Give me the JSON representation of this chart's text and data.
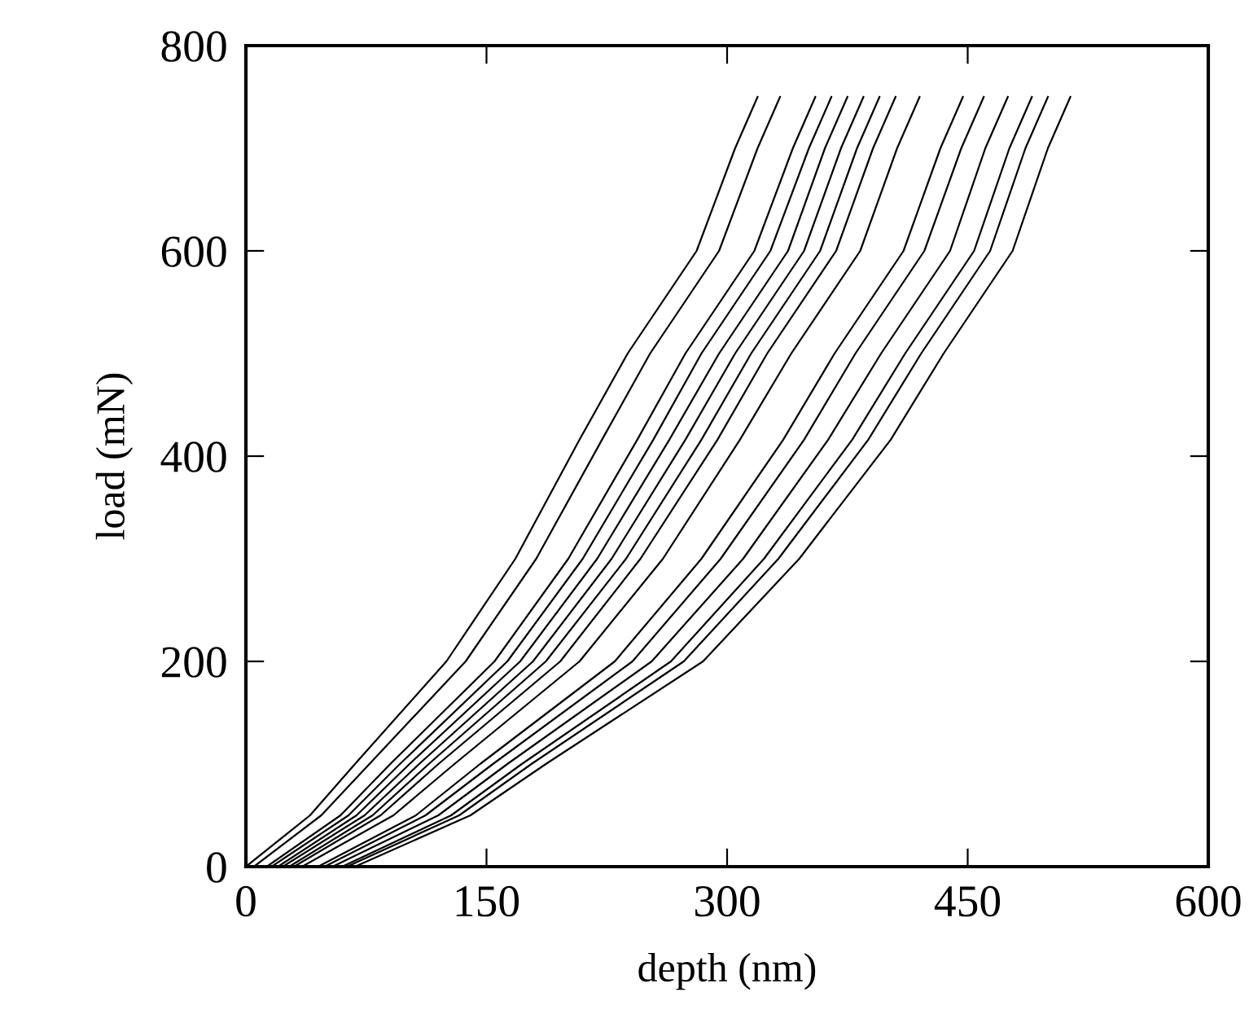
{
  "chart_data": {
    "type": "line",
    "xlabel": "depth (nm)",
    "ylabel": "load (mN)",
    "xlim": [
      0,
      600
    ],
    "xticks": [
      0,
      150,
      300,
      450,
      600
    ],
    "ylim": [
      0,
      800
    ],
    "yticks": [
      0,
      200,
      400,
      600,
      800
    ],
    "grid": false,
    "legend": false,
    "marker": "none",
    "line_style": "solid",
    "series": [
      {
        "color": "#000000",
        "x": [
          0,
          40,
          68,
          125,
          168,
          208,
          238,
          281,
          305,
          319
        ],
        "values": [
          0,
          50,
          100,
          200,
          300,
          416,
          500,
          600,
          700,
          750
        ]
      },
      {
        "color": "#000000",
        "x": [
          5,
          47,
          77,
          137,
          181,
          222,
          252,
          295,
          319,
          333
        ],
        "values": [
          0,
          50,
          100,
          200,
          300,
          416,
          500,
          600,
          700,
          750
        ]
      },
      {
        "color": "#000000",
        "x": [
          13,
          59,
          90,
          155,
          201,
          244,
          274,
          317,
          341,
          355
        ],
        "values": [
          0,
          50,
          100,
          200,
          300,
          416,
          500,
          600,
          700,
          750
        ]
      },
      {
        "color": "#000000",
        "x": [
          16,
          64,
          96,
          163,
          210,
          254,
          284,
          327,
          351,
          365
        ],
        "values": [
          0,
          50,
          100,
          200,
          300,
          416,
          500,
          600,
          700,
          750
        ]
      },
      {
        "color": "#000000",
        "x": [
          20,
          69,
          102,
          171,
          219,
          264,
          295,
          338,
          361,
          375
        ],
        "values": [
          0,
          50,
          100,
          200,
          300,
          416,
          500,
          600,
          700,
          750
        ]
      },
      {
        "color": "#000000",
        "x": [
          23,
          74,
          108,
          179,
          228,
          274,
          305,
          348,
          371,
          385
        ],
        "values": [
          0,
          50,
          100,
          200,
          300,
          416,
          500,
          600,
          700,
          750
        ]
      },
      {
        "color": "#000000",
        "x": [
          27,
          79,
          114,
          187,
          237,
          284,
          315,
          358,
          381,
          395
        ],
        "values": [
          0,
          50,
          100,
          200,
          300,
          416,
          500,
          600,
          700,
          750
        ]
      },
      {
        "color": "#000000",
        "x": [
          30,
          84,
          120,
          196,
          246,
          294,
          325,
          368,
          391,
          405
        ],
        "values": [
          0,
          50,
          100,
          200,
          300,
          416,
          500,
          600,
          700,
          750
        ]
      },
      {
        "color": "#000000",
        "x": [
          35,
          92,
          130,
          208,
          260,
          308,
          340,
          383,
          406,
          420
        ],
        "values": [
          0,
          50,
          100,
          200,
          300,
          416,
          500,
          600,
          700,
          750
        ]
      },
      {
        "color": "#000000",
        "x": [
          45,
          106,
          146,
          230,
          284,
          335,
          367,
          410,
          433,
          447
        ],
        "values": [
          0,
          50,
          100,
          200,
          300,
          416,
          500,
          600,
          700,
          750
        ]
      },
      {
        "color": "#000000",
        "x": [
          49,
          112,
          154,
          241,
          296,
          348,
          380,
          423,
          446,
          460
        ],
        "values": [
          0,
          50,
          100,
          200,
          300,
          416,
          500,
          600,
          700,
          750
        ]
      },
      {
        "color": "#000000",
        "x": [
          54,
          120,
          163,
          253,
          310,
          363,
          396,
          439,
          461,
          475
        ],
        "values": [
          0,
          50,
          100,
          200,
          300,
          416,
          500,
          600,
          700,
          750
        ]
      },
      {
        "color": "#000000",
        "x": [
          60,
          128,
          172,
          265,
          323,
          378,
          411,
          454,
          476,
          490
        ],
        "values": [
          0,
          50,
          100,
          200,
          300,
          416,
          500,
          600,
          700,
          750
        ]
      },
      {
        "color": "#000000",
        "x": [
          63,
          133,
          178,
          273,
          332,
          388,
          421,
          464,
          486,
          500
        ],
        "values": [
          0,
          50,
          100,
          200,
          300,
          416,
          500,
          600,
          700,
          750
        ]
      },
      {
        "color": "#000000",
        "x": [
          68,
          140,
          187,
          285,
          345,
          402,
          435,
          478,
          500,
          514
        ],
        "values": [
          0,
          50,
          100,
          200,
          300,
          416,
          500,
          600,
          700,
          750
        ]
      }
    ]
  }
}
